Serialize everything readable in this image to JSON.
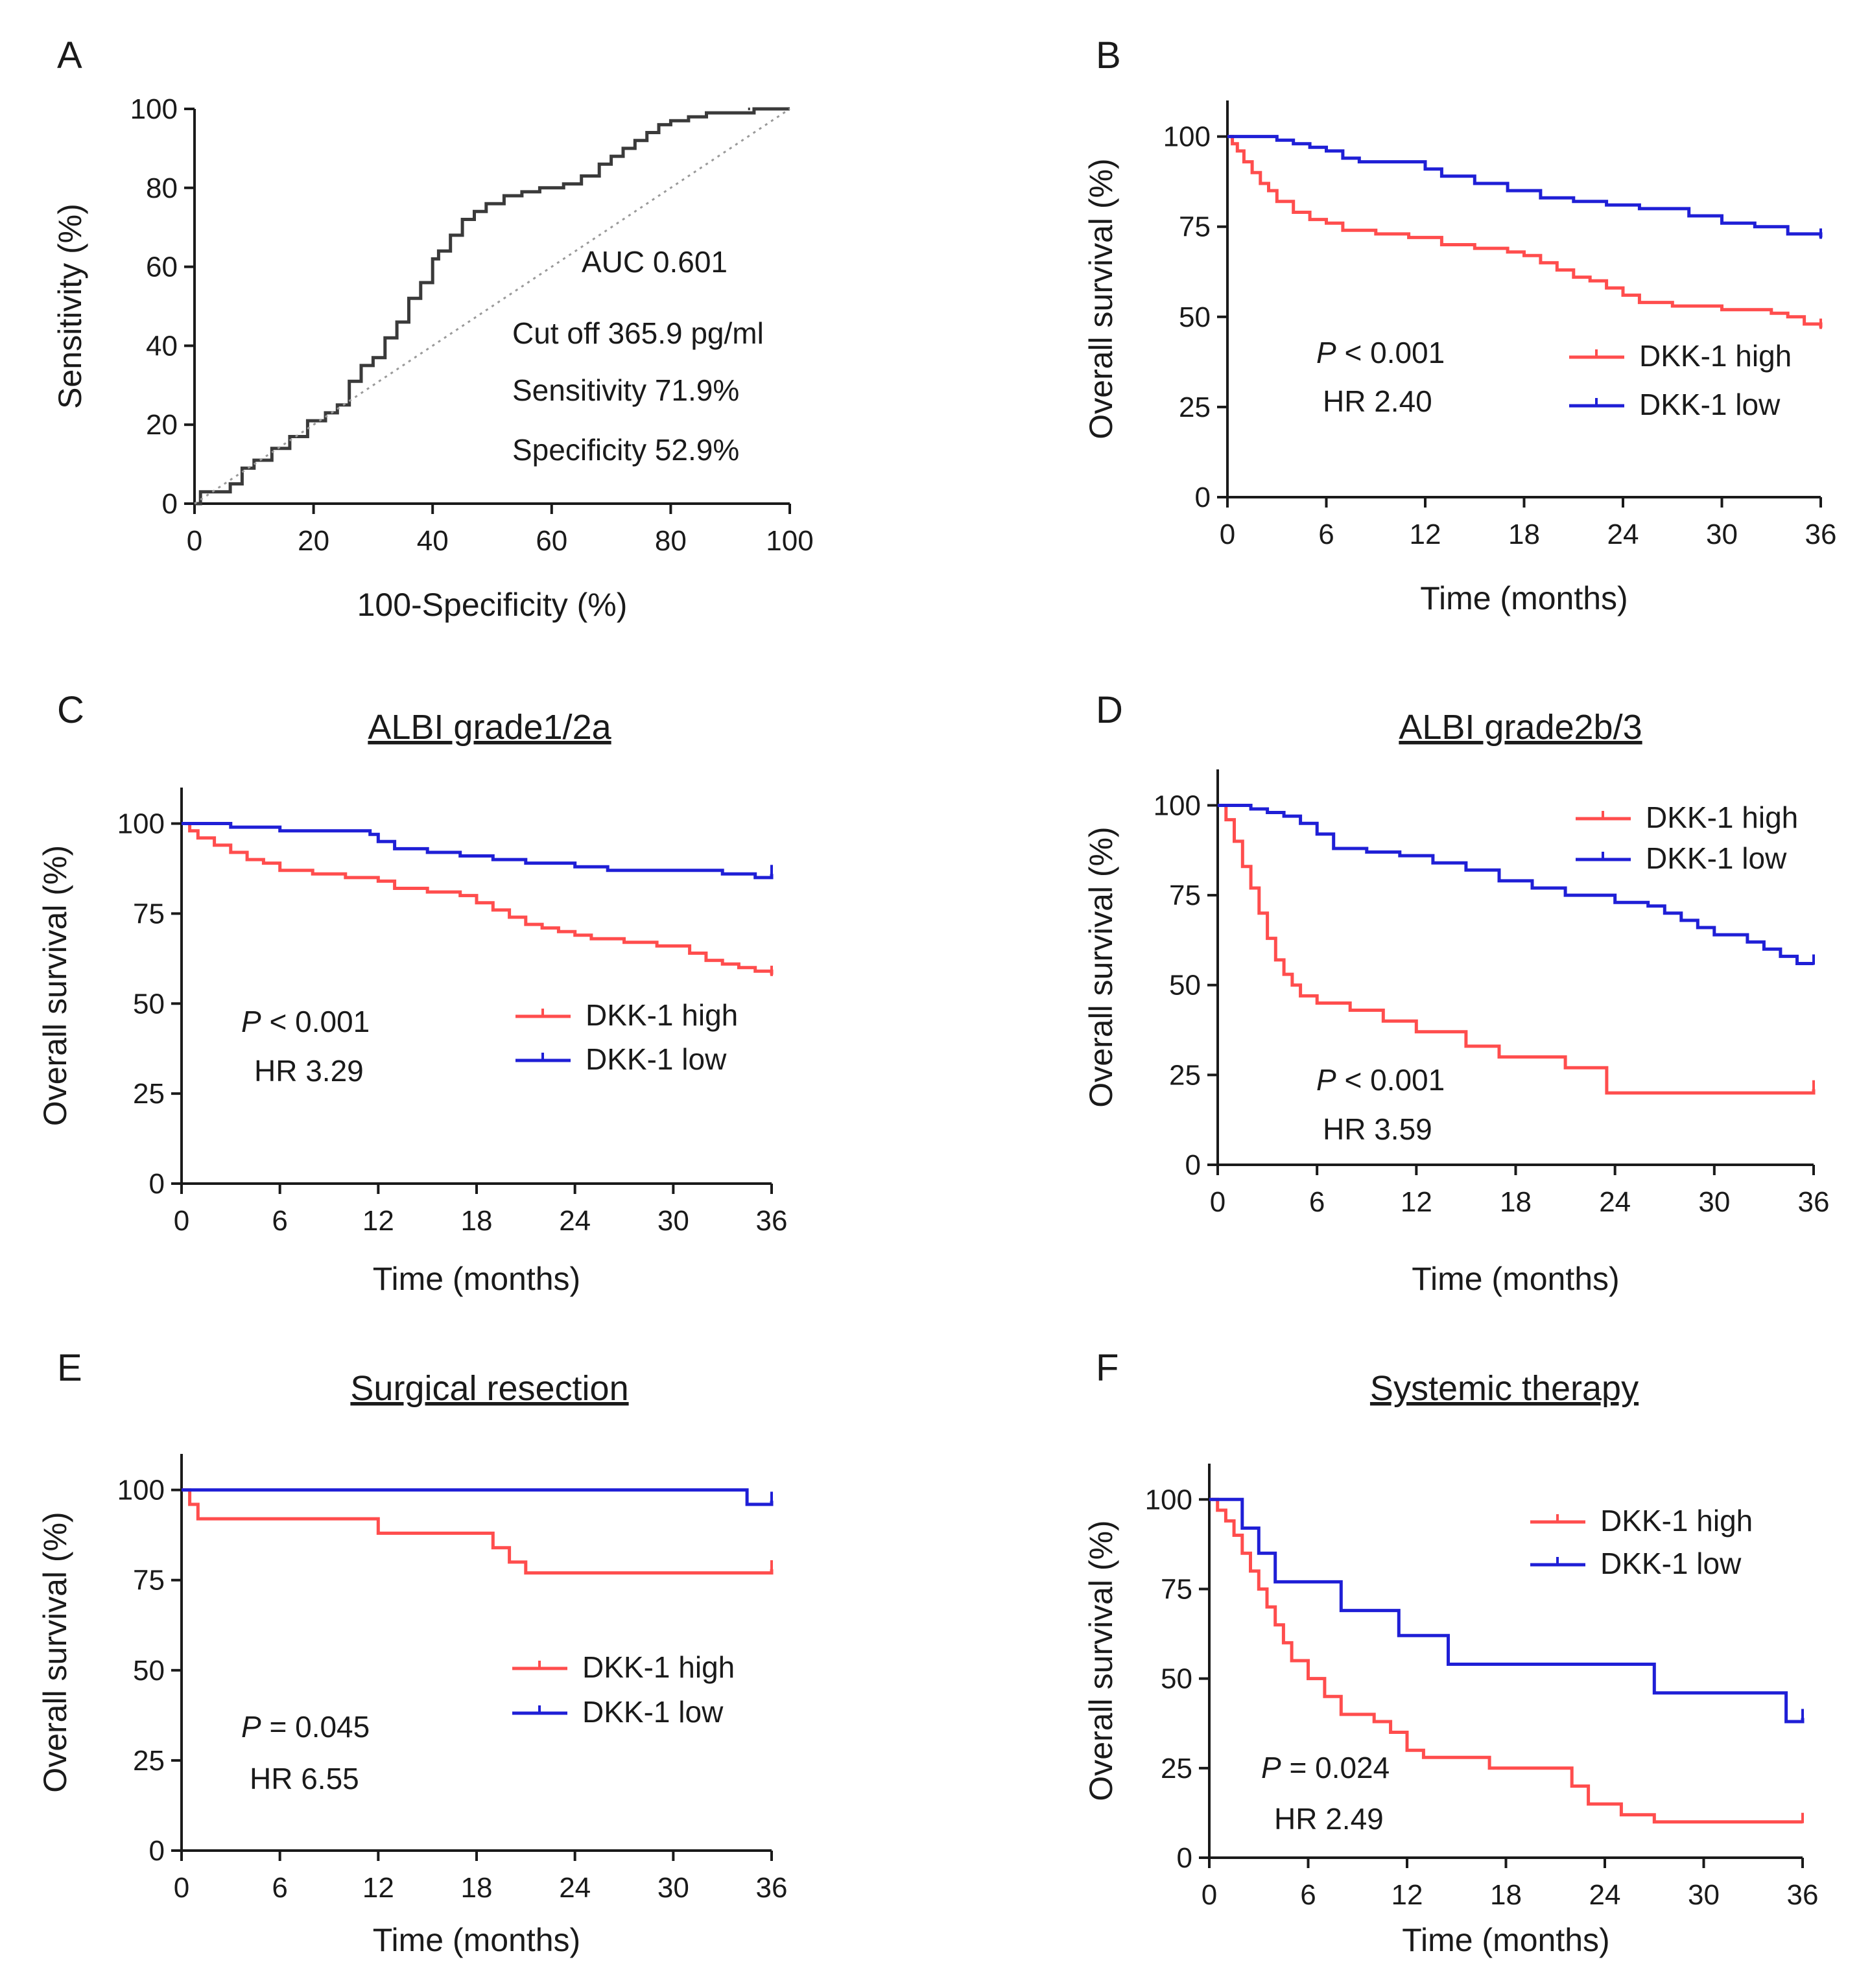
{
  "colors": {
    "high": "#ff4d4d",
    "low": "#1f1fd6",
    "roc": "#3a3a3a",
    "reference": "#9a9a9a"
  },
  "chart_data": [
    {
      "panel": "A",
      "type": "line",
      "title": "",
      "xlabel": "100-Specificity (%)",
      "ylabel": "Sensitivity (%)",
      "xlim": [
        0,
        100
      ],
      "ylim": [
        0,
        100
      ],
      "xticks": [
        "0",
        "20",
        "40",
        "60",
        "80",
        "100"
      ],
      "yticks": [
        "0",
        "20",
        "40",
        "60",
        "80",
        "100"
      ],
      "annotations": [
        "AUC 0.601",
        "Cut off  365.9 pg/ml",
        "Sensitivity  71.9%",
        "Specificity  52.9%"
      ],
      "series": [
        {
          "name": "ROC curve",
          "color_key": "roc",
          "x": [
            0,
            1,
            3,
            6,
            8,
            10,
            13,
            16,
            19,
            22,
            24,
            26,
            28,
            30,
            32,
            34,
            36,
            38,
            40,
            41,
            43,
            45,
            47,
            49,
            52,
            55,
            58,
            62,
            65,
            68,
            70,
            72,
            74,
            76,
            78,
            80,
            83,
            86,
            90,
            94,
            100
          ],
          "y": [
            0,
            3,
            3,
            5,
            9,
            11,
            14,
            17,
            21,
            23,
            25,
            31,
            35,
            37,
            42,
            46,
            52,
            56,
            62,
            64,
            68,
            72,
            74,
            76,
            78,
            79,
            80,
            81,
            83,
            86,
            88,
            90,
            92,
            94,
            96,
            97,
            98,
            99,
            99,
            100,
            100
          ]
        },
        {
          "name": "Reference line",
          "color_key": "reference",
          "dashed": true,
          "x": [
            0,
            100
          ],
          "y": [
            0,
            100
          ]
        }
      ]
    },
    {
      "panel": "B",
      "type": "line",
      "title": "",
      "xlabel": "Time (months)",
      "ylabel": "Overall survival (%)",
      "xlim": [
        0,
        36
      ],
      "ylim": [
        0,
        110
      ],
      "xticks": [
        "0",
        "6",
        "12",
        "18",
        "24",
        "30",
        "36"
      ],
      "yticks": [
        "0",
        "25",
        "50",
        "75",
        "100"
      ],
      "annotations": [
        "< 0.001",
        "HR 2.40"
      ],
      "p_label": "P",
      "legend": [
        "DKK-1 high",
        "DKK-1 low"
      ],
      "legend_position": "right",
      "series": [
        {
          "name": "DKK-1 high",
          "color_key": "high",
          "x": [
            0,
            0.3,
            0.6,
            1,
            1.5,
            2,
            2.5,
            3,
            4,
            5,
            6,
            7,
            9,
            11,
            13,
            15,
            17,
            18,
            19,
            20,
            21,
            22,
            23,
            24,
            25,
            27,
            30,
            31,
            33,
            34,
            35,
            36
          ],
          "y": [
            100,
            98,
            96,
            93,
            90,
            87,
            85,
            82,
            79,
            77,
            76,
            74,
            73,
            72,
            70,
            69,
            68,
            67,
            65,
            63,
            61,
            60,
            58,
            56,
            54,
            53,
            52,
            52,
            51,
            50,
            48,
            47
          ]
        },
        {
          "name": "DKK-1 low",
          "color_key": "low",
          "x": [
            0,
            2,
            3,
            4,
            5,
            6,
            7,
            8,
            10,
            12,
            13,
            15,
            17,
            19,
            21,
            23,
            25,
            27,
            28,
            30,
            32,
            34,
            36
          ],
          "y": [
            100,
            100,
            99,
            98,
            97,
            96,
            94,
            93,
            93,
            91,
            89,
            87,
            85,
            83,
            82,
            81,
            80,
            80,
            78,
            76,
            75,
            73,
            72
          ]
        }
      ]
    },
    {
      "panel": "C",
      "type": "line",
      "title": "ALBI grade1/2a",
      "xlabel": "Time (months)",
      "ylabel": "Overall survival (%)",
      "xlim": [
        0,
        36
      ],
      "ylim": [
        0,
        110
      ],
      "xticks": [
        "0",
        "6",
        "12",
        "18",
        "24",
        "30",
        "36"
      ],
      "yticks": [
        "0",
        "25",
        "50",
        "75",
        "100"
      ],
      "annotations": [
        "< 0.001",
        "HR 3.29"
      ],
      "p_label": "P",
      "legend": [
        "DKK-1 high",
        "DKK-1 low"
      ],
      "legend_position": "center-right",
      "series": [
        {
          "name": "DKK-1 high",
          "color_key": "high",
          "x": [
            0,
            0.5,
            1,
            2,
            3,
            4,
            5,
            6,
            8,
            10,
            12,
            13,
            15,
            17,
            18,
            19,
            20,
            21,
            22,
            23,
            24,
            25,
            27,
            29,
            31,
            32,
            33,
            34,
            35,
            36
          ],
          "y": [
            100,
            98,
            96,
            94,
            92,
            90,
            89,
            87,
            86,
            85,
            84,
            82,
            81,
            80,
            78,
            76,
            74,
            72,
            71,
            70,
            69,
            68,
            67,
            66,
            64,
            62,
            61,
            60,
            59,
            58
          ]
        },
        {
          "name": "DKK-1 low",
          "color_key": "low",
          "x": [
            0,
            3,
            6,
            9,
            11.5,
            12,
            13,
            15,
            17,
            19,
            21,
            24,
            26,
            30,
            33,
            35,
            36
          ],
          "y": [
            100,
            99,
            98,
            98,
            97,
            95,
            93,
            92,
            91,
            90,
            89,
            88,
            87,
            87,
            86,
            85,
            86
          ]
        }
      ]
    },
    {
      "panel": "D",
      "type": "line",
      "title": "ALBI grade2b/3",
      "xlabel": "Time (months)",
      "ylabel": "Overall survival (%)",
      "xlim": [
        0,
        36
      ],
      "ylim": [
        0,
        110
      ],
      "xticks": [
        "0",
        "6",
        "12",
        "18",
        "24",
        "30",
        "36"
      ],
      "yticks": [
        "0",
        "25",
        "50",
        "75",
        "100"
      ],
      "annotations": [
        "< 0.001",
        "HR 3.59"
      ],
      "p_label": "P",
      "legend": [
        "DKK-1 high",
        "DKK-1 low"
      ],
      "legend_position": "top-right",
      "series": [
        {
          "name": "DKK-1 high",
          "color_key": "high",
          "x": [
            0,
            0.5,
            1,
            1.5,
            2,
            2.5,
            3,
            3.5,
            4,
            4.5,
            5,
            6,
            8,
            10,
            12,
            15,
            17,
            21,
            23.5,
            36
          ],
          "y": [
            100,
            96,
            90,
            83,
            77,
            70,
            63,
            57,
            53,
            50,
            47,
            45,
            43,
            40,
            37,
            33,
            30,
            27,
            20,
            21
          ]
        },
        {
          "name": "DKK-1 low",
          "color_key": "low",
          "x": [
            0,
            2,
            3,
            4,
            5,
            6,
            7,
            9,
            11,
            13,
            15,
            17,
            19,
            21,
            24,
            26,
            27,
            28,
            29,
            30,
            32,
            33,
            34,
            35,
            36
          ],
          "y": [
            100,
            99,
            98,
            97,
            95,
            92,
            88,
            87,
            86,
            84,
            82,
            79,
            77,
            75,
            73,
            72,
            70,
            68,
            66,
            64,
            62,
            60,
            58,
            56,
            56
          ]
        }
      ]
    },
    {
      "panel": "E",
      "type": "line",
      "title": "Surgical resection",
      "xlabel": "Time (months)",
      "ylabel": "Overall survival (%)",
      "xlim": [
        0,
        36
      ],
      "ylim": [
        0,
        110
      ],
      "xticks": [
        "0",
        "6",
        "12",
        "18",
        "24",
        "30",
        "36"
      ],
      "yticks": [
        "0",
        "25",
        "50",
        "75",
        "100"
      ],
      "annotations": [
        "= 0.045",
        "HR 6.55"
      ],
      "p_label": "P",
      "legend": [
        "DKK-1 high",
        "DKK-1 low"
      ],
      "legend_position": "center-right",
      "series": [
        {
          "name": "DKK-1 high",
          "color_key": "high",
          "x": [
            0,
            0.5,
            1,
            12,
            19,
            20,
            21,
            36
          ],
          "y": [
            100,
            96,
            92,
            88,
            84,
            80,
            77,
            78
          ]
        },
        {
          "name": "DKK-1 low",
          "color_key": "low",
          "x": [
            0,
            34.5,
            36
          ],
          "y": [
            100,
            96,
            97
          ]
        }
      ]
    },
    {
      "panel": "F",
      "type": "line",
      "title": "Systemic therapy",
      "xlabel": "Time (months)",
      "ylabel": "Overall survival (%)",
      "xlim": [
        0,
        36
      ],
      "ylim": [
        0,
        110
      ],
      "xticks": [
        "0",
        "6",
        "12",
        "18",
        "24",
        "30",
        "36"
      ],
      "yticks": [
        "0",
        "25",
        "50",
        "75",
        "100"
      ],
      "annotations": [
        "= 0.024",
        "HR 2.49"
      ],
      "p_label": "P",
      "legend": [
        "DKK-1 high",
        "DKK-1 low"
      ],
      "legend_position": "top-right",
      "series": [
        {
          "name": "DKK-1 high",
          "color_key": "high",
          "x": [
            0,
            0.5,
            1,
            1.5,
            2,
            2.5,
            3,
            3.5,
            4,
            4.5,
            5,
            6,
            7,
            8,
            10,
            11,
            12,
            13,
            17,
            22,
            23,
            25,
            27,
            36
          ],
          "y": [
            100,
            97,
            94,
            90,
            85,
            80,
            75,
            70,
            65,
            60,
            55,
            50,
            45,
            40,
            38,
            35,
            30,
            28,
            25,
            20,
            15,
            12,
            10,
            10
          ]
        },
        {
          "name": "DKK-1 low",
          "color_key": "low",
          "x": [
            0,
            2,
            3,
            4,
            8,
            11.5,
            14.5,
            27,
            35,
            36
          ],
          "y": [
            100,
            92,
            85,
            77,
            69,
            62,
            54,
            46,
            38,
            39
          ]
        }
      ]
    }
  ]
}
